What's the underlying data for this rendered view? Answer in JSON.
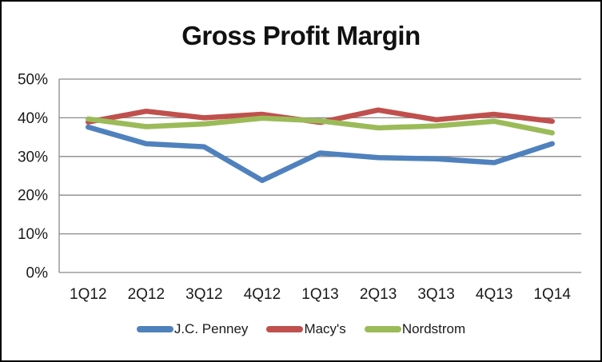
{
  "chart_data": {
    "type": "line",
    "title": "Gross Profit Margin",
    "categories": [
      "1Q12",
      "2Q12",
      "3Q12",
      "4Q12",
      "1Q13",
      "2Q13",
      "3Q13",
      "4Q13",
      "1Q14"
    ],
    "series": [
      {
        "name": "J.C. Penney",
        "color": "#4F81BD",
        "values": [
          37.6,
          33.3,
          32.5,
          23.8,
          30.9,
          29.7,
          29.4,
          28.4,
          33.3
        ]
      },
      {
        "name": "Macy's",
        "color": "#C0504D",
        "values": [
          38.9,
          41.7,
          40.0,
          40.9,
          38.8,
          42.0,
          39.5,
          40.9,
          39.1
        ]
      },
      {
        "name": "Nordstrom",
        "color": "#9BBB59",
        "values": [
          39.7,
          37.7,
          38.4,
          39.9,
          39.2,
          37.4,
          37.9,
          39.1,
          36.1
        ]
      }
    ],
    "y_axis": {
      "min": 0,
      "max": 50,
      "tick_step": 10,
      "tick_labels": [
        "0%",
        "10%",
        "20%",
        "30%",
        "40%",
        "50%"
      ]
    },
    "xlabel": "",
    "ylabel": "",
    "grid": true,
    "legend_position": "bottom",
    "gridline_color": "#8a8a8a",
    "axis_color": "#8a8a8a"
  }
}
